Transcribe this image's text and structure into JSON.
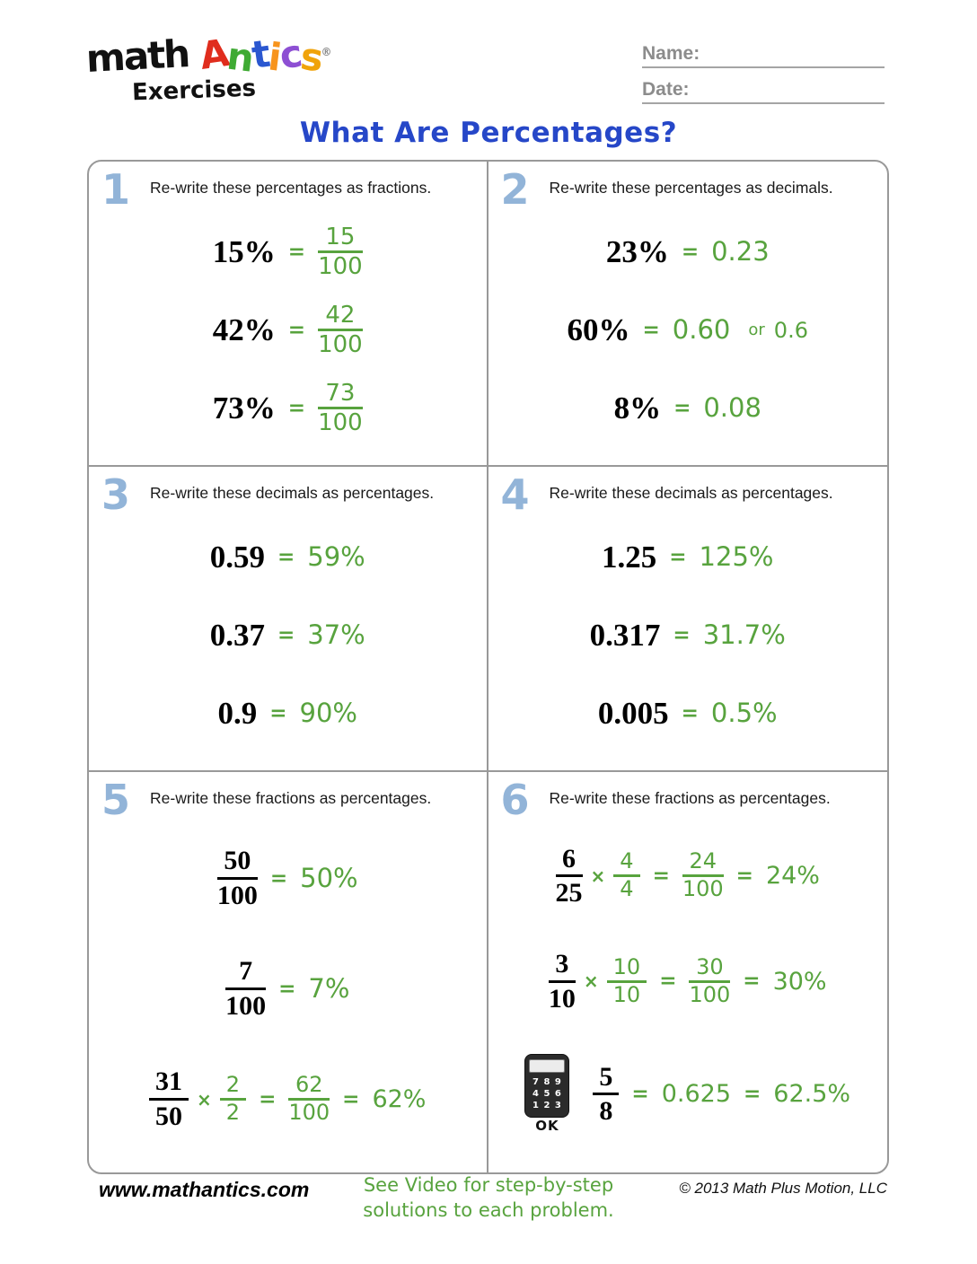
{
  "colors": {
    "answer_green": "#58a33e",
    "section_number_blue": "#92b4d8",
    "title_blue": "#2647c8",
    "border_gray": "#999999",
    "label_gray": "#8c8c8c"
  },
  "logo": {
    "word_math": "math",
    "antics_letters": [
      {
        "ch": "A",
        "color": "#e02d1d"
      },
      {
        "ch": "n",
        "color": "#3faa34"
      },
      {
        "ch": "t",
        "color": "#2a57d0"
      },
      {
        "ch": "i",
        "color": "#f7941d"
      },
      {
        "ch": "c",
        "color": "#8d4fd3"
      },
      {
        "ch": "s",
        "color": "#f0a30a"
      }
    ],
    "registered_mark": "®",
    "subtitle": "Exercises"
  },
  "header": {
    "name_label": "Name:",
    "date_label": "Date:"
  },
  "title": "What Are Percentages?",
  "symbols": {
    "eq": "=",
    "times": "×",
    "or": "or"
  },
  "sections": [
    {
      "num": "1",
      "prompt": "Re-write these percentages as fractions.",
      "problems": [
        {
          "q": "15%",
          "frac": {
            "n": "15",
            "d": "100"
          }
        },
        {
          "q": "42%",
          "frac": {
            "n": "42",
            "d": "100"
          }
        },
        {
          "q": "73%",
          "frac": {
            "n": "73",
            "d": "100"
          }
        }
      ]
    },
    {
      "num": "2",
      "prompt": "Re-write these percentages as decimals.",
      "problems": [
        {
          "q": "23%",
          "a": "0.23"
        },
        {
          "q": "60%",
          "a": "0.60",
          "alt": "0.6"
        },
        {
          "q": "8%",
          "a": "0.08"
        }
      ]
    },
    {
      "num": "3",
      "prompt": "Re-write these decimals as percentages.",
      "problems": [
        {
          "q": "0.59",
          "a": "59%"
        },
        {
          "q": "0.37",
          "a": "37%"
        },
        {
          "q": "0.9",
          "a": "90%"
        }
      ]
    },
    {
      "num": "4",
      "prompt": "Re-write these decimals as percentages.",
      "problems": [
        {
          "q": "1.25",
          "a": "125%"
        },
        {
          "q": "0.317",
          "a": "31.7%"
        },
        {
          "q": "0.005",
          "a": "0.5%"
        }
      ]
    },
    {
      "num": "5",
      "prompt": "Re-write these fractions as percentages.",
      "problems": [
        {
          "qfrac": {
            "n": "50",
            "d": "100"
          },
          "a": "50%"
        },
        {
          "qfrac": {
            "n": "7",
            "d": "100"
          },
          "a": "7%"
        },
        {
          "qfrac": {
            "n": "31",
            "d": "50"
          },
          "mfrac": {
            "n": "2",
            "d": "2"
          },
          "efrac": {
            "n": "62",
            "d": "100"
          },
          "a": "62%"
        }
      ]
    },
    {
      "num": "6",
      "prompt": "Re-write these fractions as percentages.",
      "problems": [
        {
          "qfrac": {
            "n": "6",
            "d": "25"
          },
          "mfrac": {
            "n": "4",
            "d": "4"
          },
          "efrac": {
            "n": "24",
            "d": "100"
          },
          "a": "24%"
        },
        {
          "qfrac": {
            "n": "3",
            "d": "10"
          },
          "mfrac": {
            "n": "10",
            "d": "10"
          },
          "efrac": {
            "n": "30",
            "d": "100"
          },
          "a": "30%"
        },
        {
          "calc": {
            "rows": [
              "7 8 9",
              "4 5 6",
              "1 2 3"
            ],
            "ok": "OK"
          },
          "qfrac": {
            "n": "5",
            "d": "8"
          },
          "dec": "0.625",
          "a": "62.5%"
        }
      ]
    }
  ],
  "footer": {
    "website": "www.mathantics.com",
    "note_line1": "See Video for step-by-step",
    "note_line2": "solutions to each problem.",
    "copyright": "© 2013 Math Plus Motion, LLC"
  }
}
